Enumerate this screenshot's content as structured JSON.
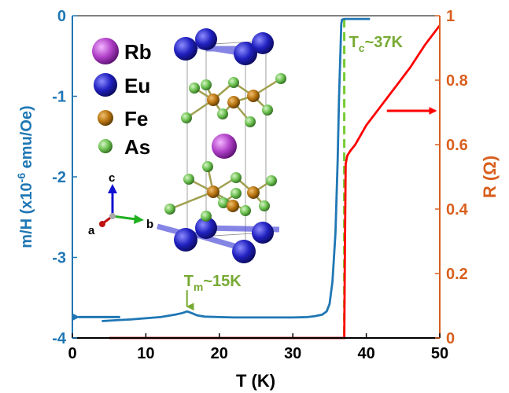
{
  "chart_data": {
    "type": "line",
    "xlabel": "T (K)",
    "ylabel_left_prefix": "m/H (x10",
    "ylabel_left_exp": "-6",
    "ylabel_left_suffix": " emu/Oe)",
    "ylabel_right": "R (Ω)",
    "xlim": [
      0,
      50
    ],
    "ylim_left": [
      -4,
      0
    ],
    "ylim_right": [
      0,
      1
    ],
    "x_ticks": [
      "0",
      "10",
      "20",
      "30",
      "40",
      "50"
    ],
    "y_left_ticks": [
      "-4",
      "-3",
      "-2",
      "-1",
      "0"
    ],
    "y_right_ticks": [
      "0",
      "0.2",
      "0.4",
      "0.6",
      "0.8",
      "1"
    ],
    "colors": {
      "magnetization": "#1f77b4",
      "resistance": "#ff0000",
      "tc_line": "#77cc33",
      "right_axis": "#d95f1e"
    },
    "magnetization": {
      "x": [
        4,
        6,
        8,
        10,
        12,
        14,
        15,
        15.6,
        16.2,
        17,
        18,
        20,
        22,
        24,
        26,
        28,
        30,
        32,
        33,
        34,
        34.6,
        35,
        35.4,
        35.8,
        36.1,
        36.3,
        36.5,
        36.6,
        36.7,
        37,
        38,
        40.5
      ],
      "y": [
        -3.79,
        -3.78,
        -3.77,
        -3.755,
        -3.74,
        -3.71,
        -3.69,
        -3.67,
        -3.69,
        -3.72,
        -3.735,
        -3.74,
        -3.745,
        -3.745,
        -3.745,
        -3.745,
        -3.745,
        -3.74,
        -3.73,
        -3.71,
        -3.67,
        -3.58,
        -3.3,
        -2.7,
        -1.8,
        -1.0,
        -0.4,
        -0.1,
        -0.05,
        -0.04,
        -0.04,
        -0.04
      ]
    },
    "resistance": {
      "x": [
        5,
        10,
        20,
        30,
        36,
        37.0,
        37.1,
        37.2,
        37.4,
        37.8,
        38.5,
        40,
        42,
        44,
        46,
        48,
        50
      ],
      "y": [
        0,
        0,
        0,
        0,
        0,
        0,
        0.3,
        0.54,
        0.565,
        0.58,
        0.6,
        0.66,
        0.72,
        0.78,
        0.84,
        0.91,
        0.97
      ]
    },
    "tc_line_x": 37,
    "annotations": {
      "tc_main": "T",
      "tc_sub": "c",
      "tc_rest": "~37K",
      "tm_main": "T",
      "tm_sub": "m",
      "tm_rest": "~15K",
      "tm_arrow_at": {
        "x": 15.6,
        "y": -3.67
      }
    },
    "inset": {
      "legend": [
        {
          "label": "Rb",
          "color": "#b040c8"
        },
        {
          "label": "Eu",
          "color": "#2020c0"
        },
        {
          "label": "Fe",
          "color": "#b87410"
        },
        {
          "label": "As",
          "color": "#6cc050"
        }
      ],
      "axes": {
        "a": "a",
        "b": "b",
        "c": "c"
      }
    }
  }
}
